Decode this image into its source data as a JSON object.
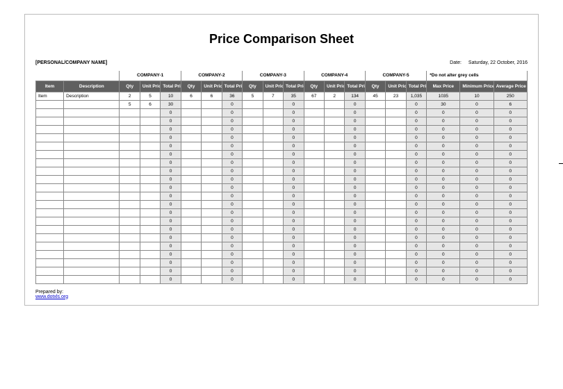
{
  "title": "Price Comparison Sheet",
  "company_name_label": "[PERSONAL/COMPANY NAME]",
  "date_label": "Date:",
  "date_value": "Saturday, 22 October, 2016",
  "companies": [
    "COMPANY-1",
    "COMPANY-2",
    "COMPANY-3",
    "COMPANY-4",
    "COMPANY-5"
  ],
  "grey_note": "*Do not alter grey cells",
  "headers": {
    "item": "Item",
    "description": "Description",
    "qty": "Qty",
    "unit_price": "Unit Price",
    "total_price": "Total Price",
    "max_price": "Max Price",
    "min_price": "Minimum Price",
    "avg_price": "Average Price"
  },
  "rows": [
    {
      "item": "Item",
      "desc": "Description",
      "c": [
        [
          "2",
          "5",
          "10"
        ],
        [
          "6",
          "6",
          "36"
        ],
        [
          "5",
          "7",
          "35"
        ],
        [
          "67",
          "2",
          "134"
        ],
        [
          "45",
          "23",
          "1,035"
        ]
      ],
      "s": [
        "1035",
        "10",
        "250"
      ]
    },
    {
      "item": "",
      "desc": "",
      "c": [
        [
          "5",
          "6",
          "30"
        ],
        [
          "",
          "",
          "0"
        ],
        [
          "",
          "",
          "0"
        ],
        [
          "",
          "",
          "0"
        ],
        [
          "",
          "",
          "0"
        ]
      ],
      "s": [
        "30",
        "0",
        "6"
      ]
    },
    {
      "item": "",
      "desc": "",
      "c": [
        [
          "",
          "",
          "0"
        ],
        [
          "",
          "",
          "0"
        ],
        [
          "",
          "",
          "0"
        ],
        [
          "",
          "",
          "0"
        ],
        [
          "",
          "",
          "0"
        ]
      ],
      "s": [
        "0",
        "0",
        "0"
      ]
    },
    {
      "item": "",
      "desc": "",
      "c": [
        [
          "",
          "",
          "0"
        ],
        [
          "",
          "",
          "0"
        ],
        [
          "",
          "",
          "0"
        ],
        [
          "",
          "",
          "0"
        ],
        [
          "",
          "",
          "0"
        ]
      ],
      "s": [
        "0",
        "0",
        "0"
      ]
    },
    {
      "item": "",
      "desc": "",
      "c": [
        [
          "",
          "",
          "0"
        ],
        [
          "",
          "",
          "0"
        ],
        [
          "",
          "",
          "0"
        ],
        [
          "",
          "",
          "0"
        ],
        [
          "",
          "",
          "0"
        ]
      ],
      "s": [
        "0",
        "0",
        "0"
      ]
    },
    {
      "item": "",
      "desc": "",
      "c": [
        [
          "",
          "",
          "0"
        ],
        [
          "",
          "",
          "0"
        ],
        [
          "",
          "",
          "0"
        ],
        [
          "",
          "",
          "0"
        ],
        [
          "",
          "",
          "0"
        ]
      ],
      "s": [
        "0",
        "0",
        "0"
      ]
    },
    {
      "item": "",
      "desc": "",
      "c": [
        [
          "",
          "",
          "0"
        ],
        [
          "",
          "",
          "0"
        ],
        [
          "",
          "",
          "0"
        ],
        [
          "",
          "",
          "0"
        ],
        [
          "",
          "",
          "0"
        ]
      ],
      "s": [
        "0",
        "0",
        "0"
      ]
    },
    {
      "item": "",
      "desc": "",
      "c": [
        [
          "",
          "",
          "0"
        ],
        [
          "",
          "",
          "0"
        ],
        [
          "",
          "",
          "0"
        ],
        [
          "",
          "",
          "0"
        ],
        [
          "",
          "",
          "0"
        ]
      ],
      "s": [
        "0",
        "0",
        "0"
      ]
    },
    {
      "item": "",
      "desc": "",
      "c": [
        [
          "",
          "",
          "0"
        ],
        [
          "",
          "",
          "0"
        ],
        [
          "",
          "",
          "0"
        ],
        [
          "",
          "",
          "0"
        ],
        [
          "",
          "",
          "0"
        ]
      ],
      "s": [
        "0",
        "0",
        "0"
      ]
    },
    {
      "item": "",
      "desc": "",
      "c": [
        [
          "",
          "",
          "0"
        ],
        [
          "",
          "",
          "0"
        ],
        [
          "",
          "",
          "0"
        ],
        [
          "",
          "",
          "0"
        ],
        [
          "",
          "",
          "0"
        ]
      ],
      "s": [
        "0",
        "0",
        "0"
      ]
    },
    {
      "item": "",
      "desc": "",
      "c": [
        [
          "",
          "",
          "0"
        ],
        [
          "",
          "",
          "0"
        ],
        [
          "",
          "",
          "0"
        ],
        [
          "",
          "",
          "0"
        ],
        [
          "",
          "",
          "0"
        ]
      ],
      "s": [
        "0",
        "0",
        "0"
      ]
    },
    {
      "item": "",
      "desc": "",
      "c": [
        [
          "",
          "",
          "0"
        ],
        [
          "",
          "",
          "0"
        ],
        [
          "",
          "",
          "0"
        ],
        [
          "",
          "",
          "0"
        ],
        [
          "",
          "",
          "0"
        ]
      ],
      "s": [
        "0",
        "0",
        "0"
      ]
    },
    {
      "item": "",
      "desc": "",
      "c": [
        [
          "",
          "",
          "0"
        ],
        [
          "",
          "",
          "0"
        ],
        [
          "",
          "",
          "0"
        ],
        [
          "",
          "",
          "0"
        ],
        [
          "",
          "",
          "0"
        ]
      ],
      "s": [
        "0",
        "0",
        "0"
      ]
    },
    {
      "item": "",
      "desc": "",
      "c": [
        [
          "",
          "",
          "0"
        ],
        [
          "",
          "",
          "0"
        ],
        [
          "",
          "",
          "0"
        ],
        [
          "",
          "",
          "0"
        ],
        [
          "",
          "",
          "0"
        ]
      ],
      "s": [
        "0",
        "0",
        "0"
      ]
    },
    {
      "item": "",
      "desc": "",
      "c": [
        [
          "",
          "",
          "0"
        ],
        [
          "",
          "",
          "0"
        ],
        [
          "",
          "",
          "0"
        ],
        [
          "",
          "",
          "0"
        ],
        [
          "",
          "",
          "0"
        ]
      ],
      "s": [
        "0",
        "0",
        "0"
      ]
    },
    {
      "item": "",
      "desc": "",
      "c": [
        [
          "",
          "",
          "0"
        ],
        [
          "",
          "",
          "0"
        ],
        [
          "",
          "",
          "0"
        ],
        [
          "",
          "",
          "0"
        ],
        [
          "",
          "",
          "0"
        ]
      ],
      "s": [
        "0",
        "0",
        "0"
      ]
    },
    {
      "item": "",
      "desc": "",
      "c": [
        [
          "",
          "",
          "0"
        ],
        [
          "",
          "",
          "0"
        ],
        [
          "",
          "",
          "0"
        ],
        [
          "",
          "",
          "0"
        ],
        [
          "",
          "",
          "0"
        ]
      ],
      "s": [
        "0",
        "0",
        "0"
      ]
    },
    {
      "item": "",
      "desc": "",
      "c": [
        [
          "",
          "",
          "0"
        ],
        [
          "",
          "",
          "0"
        ],
        [
          "",
          "",
          "0"
        ],
        [
          "",
          "",
          "0"
        ],
        [
          "",
          "",
          "0"
        ]
      ],
      "s": [
        "0",
        "0",
        "0"
      ]
    },
    {
      "item": "",
      "desc": "",
      "c": [
        [
          "",
          "",
          "0"
        ],
        [
          "",
          "",
          "0"
        ],
        [
          "",
          "",
          "0"
        ],
        [
          "",
          "",
          "0"
        ],
        [
          "",
          "",
          "0"
        ]
      ],
      "s": [
        "0",
        "0",
        "0"
      ]
    },
    {
      "item": "",
      "desc": "",
      "c": [
        [
          "",
          "",
          "0"
        ],
        [
          "",
          "",
          "0"
        ],
        [
          "",
          "",
          "0"
        ],
        [
          "",
          "",
          "0"
        ],
        [
          "",
          "",
          "0"
        ]
      ],
      "s": [
        "0",
        "0",
        "0"
      ]
    },
    {
      "item": "",
      "desc": "",
      "c": [
        [
          "",
          "",
          "0"
        ],
        [
          "",
          "",
          "0"
        ],
        [
          "",
          "",
          "0"
        ],
        [
          "",
          "",
          "0"
        ],
        [
          "",
          "",
          "0"
        ]
      ],
      "s": [
        "0",
        "0",
        "0"
      ]
    },
    {
      "item": "",
      "desc": "",
      "c": [
        [
          "",
          "",
          "0"
        ],
        [
          "",
          "",
          "0"
        ],
        [
          "",
          "",
          "0"
        ],
        [
          "",
          "",
          "0"
        ],
        [
          "",
          "",
          "0"
        ]
      ],
      "s": [
        "0",
        "0",
        "0"
      ]
    },
    {
      "item": "",
      "desc": "",
      "c": [
        [
          "",
          "",
          "0"
        ],
        [
          "",
          "",
          "0"
        ],
        [
          "",
          "",
          "0"
        ],
        [
          "",
          "",
          "0"
        ],
        [
          "",
          "",
          "0"
        ]
      ],
      "s": [
        "0",
        "0",
        "0"
      ]
    }
  ],
  "footer": {
    "prepared_by": "Prepared by:",
    "link_text": "www.dotxls.org"
  }
}
